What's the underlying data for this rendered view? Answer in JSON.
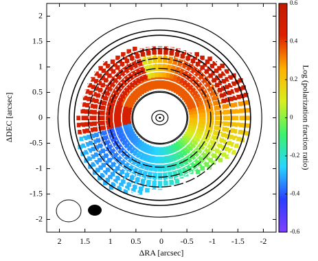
{
  "chart_data": {
    "type": "image",
    "xlabel": "ΔRA [arcsec]",
    "ylabel": "ΔDEC [arcsec]",
    "xlim": [
      2.25,
      -2.25
    ],
    "ylim": [
      -2.25,
      2.25
    ],
    "xticks": [
      2,
      1.5,
      1,
      0.5,
      0,
      -0.5,
      -1,
      -1.5,
      -2
    ],
    "yticks": [
      -2,
      -1.5,
      -1,
      -0.5,
      0,
      0.5,
      1,
      1.5,
      2
    ],
    "colorbar": {
      "label": "Log (polarization fraction ratio)",
      "lim": [
        -0.6,
        0.6
      ],
      "ticks": [
        -0.6,
        -0.4,
        -0.2,
        0,
        0.2,
        0.4,
        0.6
      ],
      "colors": [
        "#7f3fff",
        "#2a3dff",
        "#26d6ff",
        "#3cf26c",
        "#d8f020",
        "#ffb000",
        "#e02000",
        "#c01a00"
      ]
    }
  }
}
